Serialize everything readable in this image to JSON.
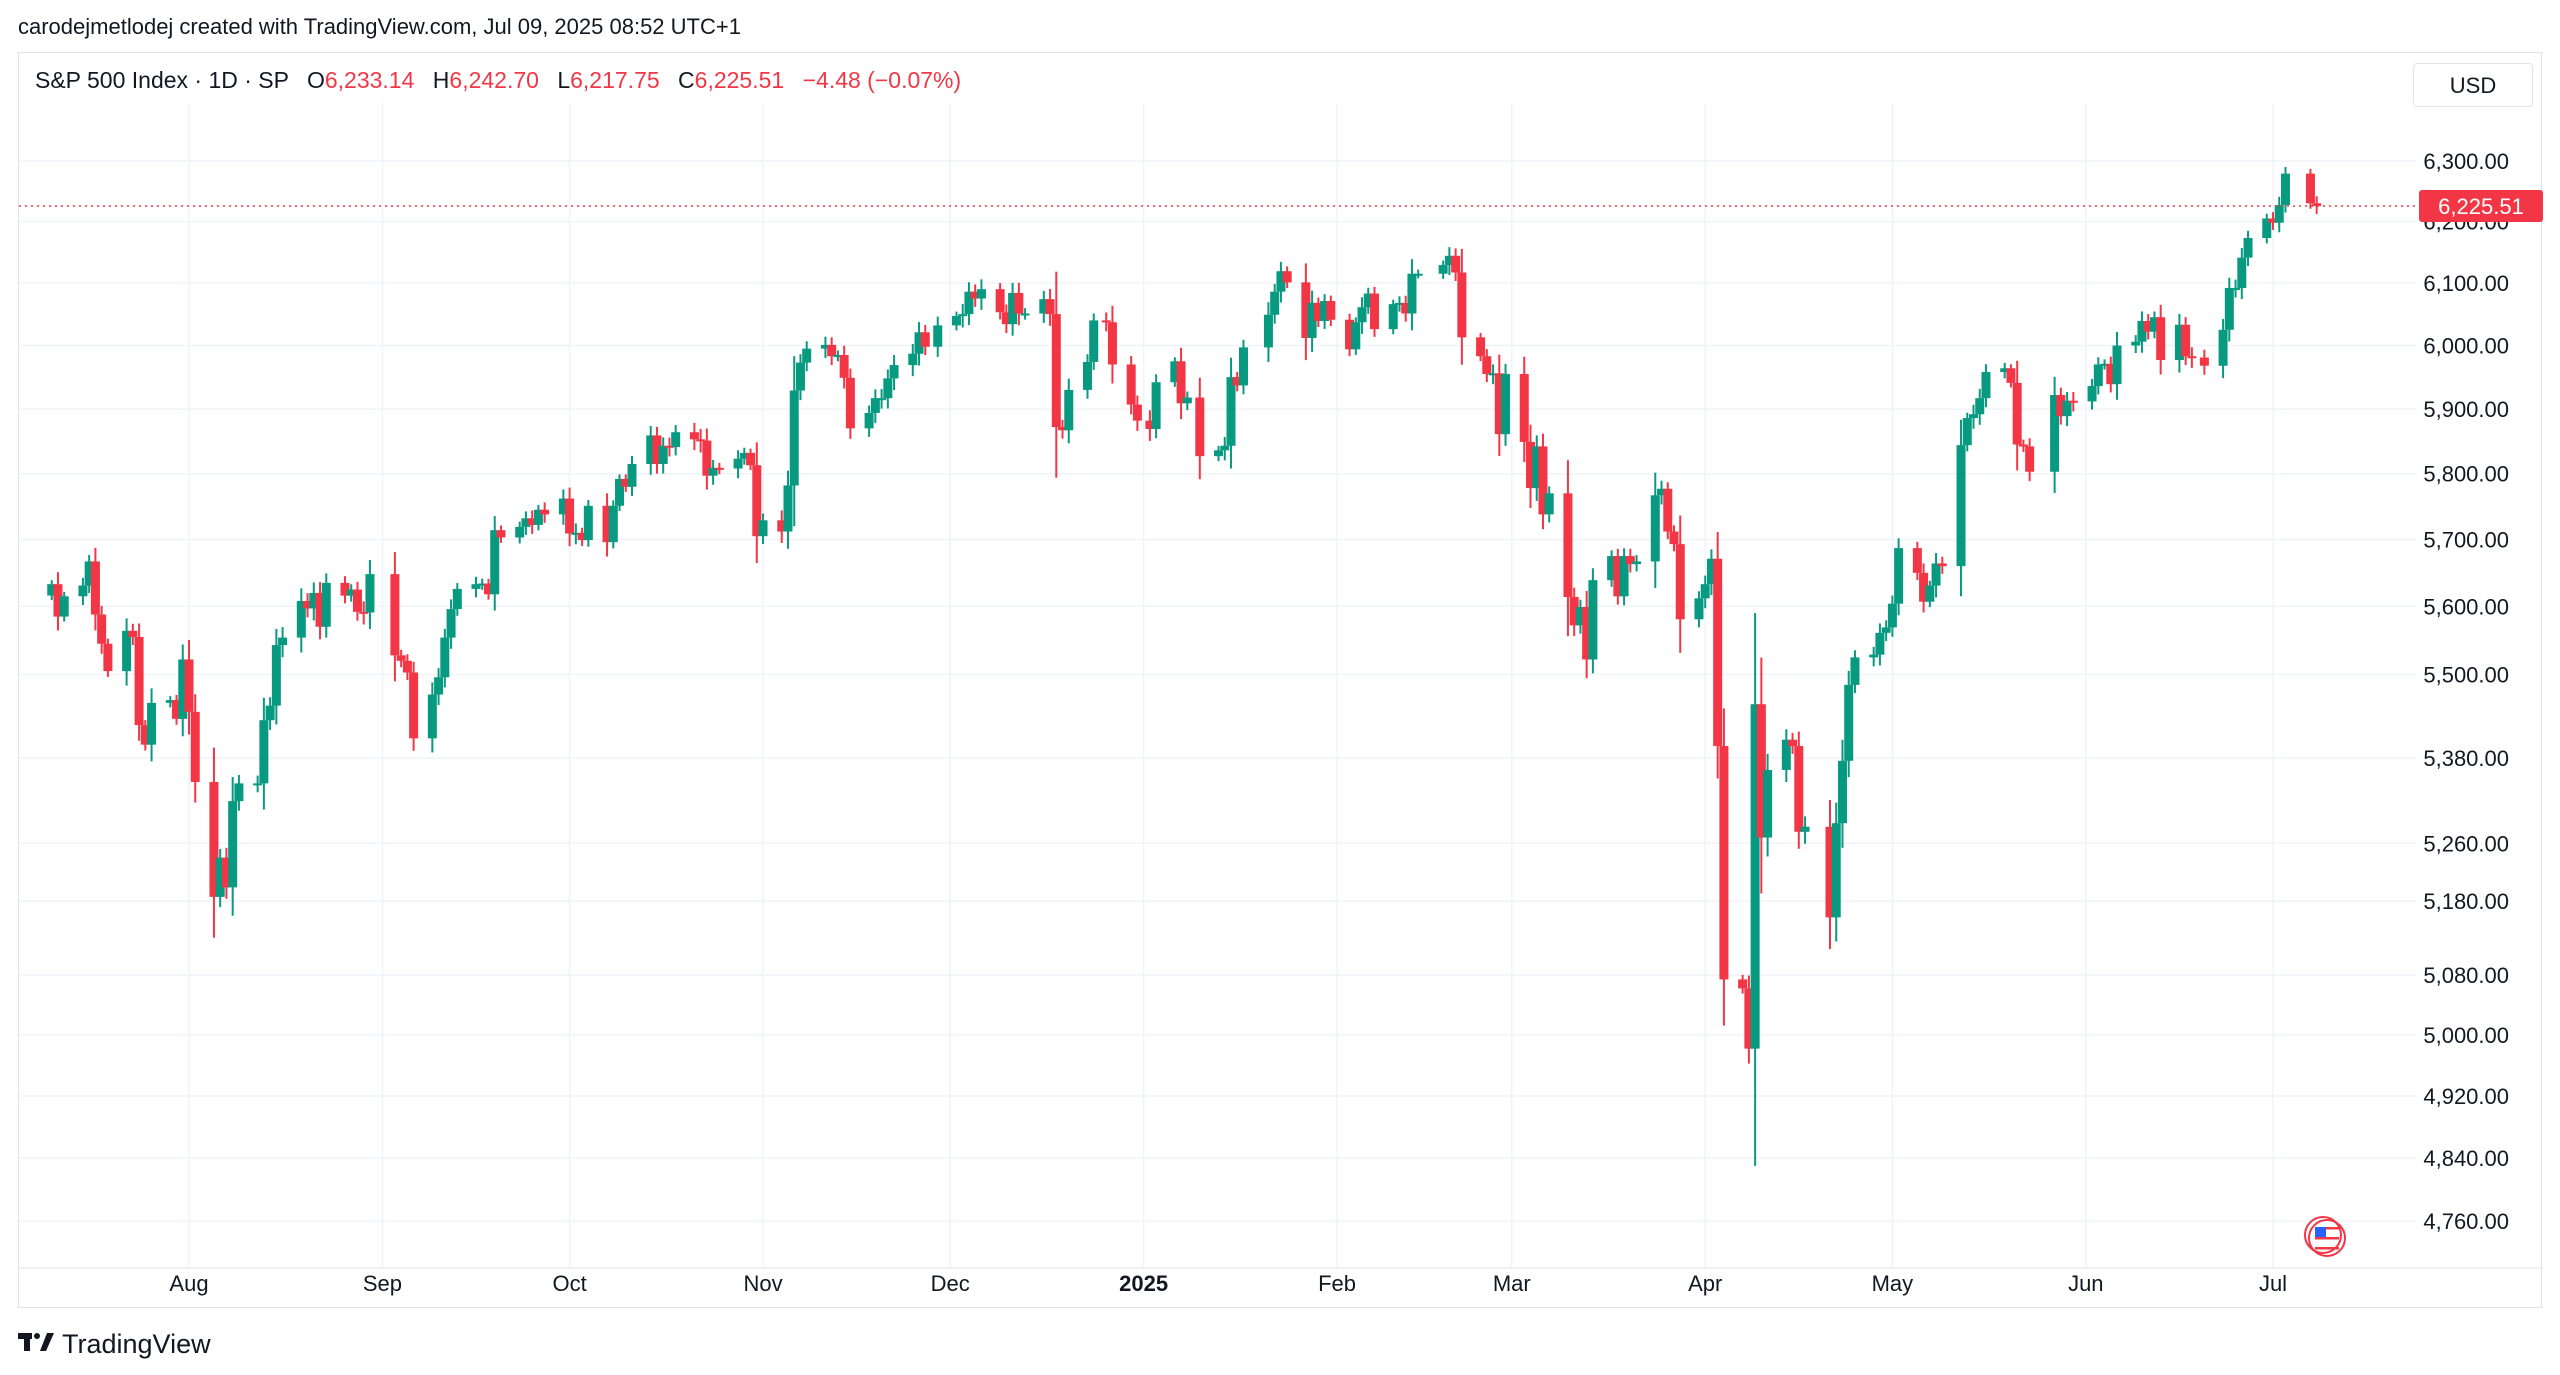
{
  "attribution": "carodejmetlodej created with TradingView.com, Jul 09, 2025 08:52 UTC+1",
  "legend": {
    "symbol": "S&P 500 Index · 1D · SP",
    "open_label": "O",
    "open_value": "6,233.14",
    "high_label": "H",
    "high_value": "6,242.70",
    "low_label": "L",
    "low_value": "6,217.75",
    "close_label": "C",
    "close_value": "6,225.51",
    "change": "−4.48 (−0.07%)"
  },
  "currency_button": "USD",
  "footer_logo": "TradingView",
  "colors": {
    "up": "#089981",
    "down": "#f23645",
    "grid": "#f0f3fa",
    "text": "#131722"
  },
  "chart_data": {
    "type": "candlestick",
    "y_ticks": [
      {
        "value": 6300,
        "label": "6,300.00"
      },
      {
        "value": 6200,
        "label": "6,200.00"
      },
      {
        "value": 6100,
        "label": "6,100.00"
      },
      {
        "value": 6000,
        "label": "6,000.00"
      },
      {
        "value": 5900,
        "label": "5,900.00"
      },
      {
        "value": 5800,
        "label": "5,800.00"
      },
      {
        "value": 5700,
        "label": "5,700.00"
      },
      {
        "value": 5600,
        "label": "5,600.00"
      },
      {
        "value": 5500,
        "label": "5,500.00"
      },
      {
        "value": 5380,
        "label": "5,380.00"
      },
      {
        "value": 5260,
        "label": "5,260.00"
      },
      {
        "value": 5180,
        "label": "5,180.00"
      },
      {
        "value": 5080,
        "label": "5,080.00"
      },
      {
        "value": 5000,
        "label": "5,000.00"
      },
      {
        "value": 4920,
        "label": "4,920.00"
      },
      {
        "value": 4840,
        "label": "4,840.00"
      },
      {
        "value": 4760,
        "label": "4,760.00"
      }
    ],
    "y_scale": "log",
    "x_ticks": [
      {
        "date": "2024-08-01",
        "label": "Aug",
        "bold": false
      },
      {
        "date": "2024-09-01",
        "label": "Sep",
        "bold": false
      },
      {
        "date": "2024-10-01",
        "label": "Oct",
        "bold": false
      },
      {
        "date": "2024-11-01",
        "label": "Nov",
        "bold": false
      },
      {
        "date": "2024-12-01",
        "label": "Dec",
        "bold": false
      },
      {
        "date": "2025-01-01",
        "label": "2025",
        "bold": true
      },
      {
        "date": "2025-02-01",
        "label": "Feb",
        "bold": false
      },
      {
        "date": "2025-03-01",
        "label": "Mar",
        "bold": false
      },
      {
        "date": "2025-04-01",
        "label": "Apr",
        "bold": false
      },
      {
        "date": "2025-05-01",
        "label": "May",
        "bold": false
      },
      {
        "date": "2025-06-01",
        "label": "Jun",
        "bold": false
      },
      {
        "date": "2025-07-01",
        "label": "Jul",
        "bold": false
      }
    ],
    "last_price": 6225.51,
    "last_price_label": "6,225.51",
    "grid": true,
    "closes": [
      [
        "2024-07-10",
        5633
      ],
      [
        "2024-07-11",
        5585
      ],
      [
        "2024-07-12",
        5615
      ],
      [
        "2024-07-15",
        5631
      ],
      [
        "2024-07-16",
        5667
      ],
      [
        "2024-07-17",
        5588
      ],
      [
        "2024-07-18",
        5545
      ],
      [
        "2024-07-19",
        5505
      ],
      [
        "2024-07-22",
        5564
      ],
      [
        "2024-07-23",
        5555
      ],
      [
        "2024-07-24",
        5427
      ],
      [
        "2024-07-25",
        5399
      ],
      [
        "2024-07-26",
        5459
      ],
      [
        "2024-07-29",
        5463
      ],
      [
        "2024-07-30",
        5436
      ],
      [
        "2024-07-31",
        5522
      ],
      [
        "2024-08-01",
        5446
      ],
      [
        "2024-08-02",
        5346
      ],
      [
        "2024-08-05",
        5186
      ],
      [
        "2024-08-06",
        5240
      ],
      [
        "2024-08-07",
        5199
      ],
      [
        "2024-08-08",
        5319
      ],
      [
        "2024-08-09",
        5344
      ],
      [
        "2024-08-12",
        5344
      ],
      [
        "2024-08-13",
        5434
      ],
      [
        "2024-08-14",
        5455
      ],
      [
        "2024-08-15",
        5543
      ],
      [
        "2024-08-16",
        5554
      ],
      [
        "2024-08-19",
        5608
      ],
      [
        "2024-08-20",
        5597
      ],
      [
        "2024-08-21",
        5620
      ],
      [
        "2024-08-22",
        5570
      ],
      [
        "2024-08-23",
        5635
      ],
      [
        "2024-08-26",
        5616
      ],
      [
        "2024-08-27",
        5625
      ],
      [
        "2024-08-28",
        5592
      ],
      [
        "2024-08-29",
        5591
      ],
      [
        "2024-08-30",
        5648
      ],
      [
        "2024-09-03",
        5528
      ],
      [
        "2024-09-04",
        5520
      ],
      [
        "2024-09-05",
        5503
      ],
      [
        "2024-09-06",
        5408
      ],
      [
        "2024-09-09",
        5471
      ],
      [
        "2024-09-10",
        5496
      ],
      [
        "2024-09-11",
        5554
      ],
      [
        "2024-09-12",
        5596
      ],
      [
        "2024-09-13",
        5626
      ],
      [
        "2024-09-16",
        5633
      ],
      [
        "2024-09-17",
        5634
      ],
      [
        "2024-09-18",
        5618
      ],
      [
        "2024-09-19",
        5714
      ],
      [
        "2024-09-20",
        5703
      ],
      [
        "2024-09-23",
        5719
      ],
      [
        "2024-09-24",
        5732
      ],
      [
        "2024-09-25",
        5722
      ],
      [
        "2024-09-26",
        5745
      ],
      [
        "2024-09-27",
        5738
      ],
      [
        "2024-09-30",
        5762
      ],
      [
        "2024-10-01",
        5709
      ],
      [
        "2024-10-02",
        5710
      ],
      [
        "2024-10-03",
        5699
      ],
      [
        "2024-10-04",
        5751
      ],
      [
        "2024-10-07",
        5696
      ],
      [
        "2024-10-08",
        5751
      ],
      [
        "2024-10-09",
        5792
      ],
      [
        "2024-10-10",
        5780
      ],
      [
        "2024-10-11",
        5815
      ],
      [
        "2024-10-14",
        5859
      ],
      [
        "2024-10-15",
        5815
      ],
      [
        "2024-10-16",
        5843
      ],
      [
        "2024-10-17",
        5841
      ],
      [
        "2024-10-18",
        5864
      ],
      [
        "2024-10-21",
        5853
      ],
      [
        "2024-10-22",
        5851
      ],
      [
        "2024-10-23",
        5797
      ],
      [
        "2024-10-24",
        5809
      ],
      [
        "2024-10-25",
        5808
      ],
      [
        "2024-10-28",
        5823
      ],
      [
        "2024-10-29",
        5832
      ],
      [
        "2024-10-30",
        5813
      ],
      [
        "2024-10-31",
        5705
      ],
      [
        "2024-11-01",
        5729
      ],
      [
        "2024-11-04",
        5712
      ],
      [
        "2024-11-05",
        5782
      ],
      [
        "2024-11-06",
        5929
      ],
      [
        "2024-11-07",
        5973
      ],
      [
        "2024-11-08",
        5995
      ],
      [
        "2024-11-11",
        6001
      ],
      [
        "2024-11-12",
        5983
      ],
      [
        "2024-11-13",
        5985
      ],
      [
        "2024-11-14",
        5949
      ],
      [
        "2024-11-15",
        5870
      ],
      [
        "2024-11-18",
        5894
      ],
      [
        "2024-11-19",
        5917
      ],
      [
        "2024-11-20",
        5917
      ],
      [
        "2024-11-21",
        5948
      ],
      [
        "2024-11-22",
        5969
      ],
      [
        "2024-11-25",
        5987
      ],
      [
        "2024-11-26",
        6021
      ],
      [
        "2024-11-27",
        5998
      ],
      [
        "2024-11-29",
        6032
      ],
      [
        "2024-12-02",
        6047
      ],
      [
        "2024-12-03",
        6050
      ],
      [
        "2024-12-04",
        6086
      ],
      [
        "2024-12-05",
        6075
      ],
      [
        "2024-12-06",
        6090
      ],
      [
        "2024-12-09",
        6053
      ],
      [
        "2024-12-10",
        6034
      ],
      [
        "2024-12-11",
        6084
      ],
      [
        "2024-12-12",
        6051
      ],
      [
        "2024-12-13",
        6051
      ],
      [
        "2024-12-16",
        6074
      ],
      [
        "2024-12-17",
        6050
      ],
      [
        "2024-12-18",
        5872
      ],
      [
        "2024-12-19",
        5867
      ],
      [
        "2024-12-20",
        5930
      ],
      [
        "2024-12-23",
        5974
      ],
      [
        "2024-12-24",
        6040
      ],
      [
        "2024-12-26",
        6037
      ],
      [
        "2024-12-27",
        5970
      ],
      [
        "2024-12-30",
        5907
      ],
      [
        "2024-12-31",
        5882
      ],
      [
        "2025-01-02",
        5869
      ],
      [
        "2025-01-03",
        5942
      ],
      [
        "2025-01-06",
        5975
      ],
      [
        "2025-01-07",
        5909
      ],
      [
        "2025-01-08",
        5918
      ],
      [
        "2025-01-10",
        5827
      ],
      [
        "2025-01-13",
        5836
      ],
      [
        "2025-01-14",
        5843
      ],
      [
        "2025-01-15",
        5950
      ],
      [
        "2025-01-16",
        5937
      ],
      [
        "2025-01-17",
        5997
      ],
      [
        "2025-01-21",
        6049
      ],
      [
        "2025-01-22",
        6086
      ],
      [
        "2025-01-23",
        6119
      ],
      [
        "2025-01-24",
        6101
      ],
      [
        "2025-01-27",
        6012
      ],
      [
        "2025-01-28",
        6068
      ],
      [
        "2025-01-29",
        6039
      ],
      [
        "2025-01-30",
        6071
      ],
      [
        "2025-01-31",
        6041
      ],
      [
        "2025-02-03",
        5994
      ],
      [
        "2025-02-04",
        6037
      ],
      [
        "2025-02-05",
        6061
      ],
      [
        "2025-02-06",
        6083
      ],
      [
        "2025-02-07",
        6026
      ],
      [
        "2025-02-10",
        6066
      ],
      [
        "2025-02-11",
        6068
      ],
      [
        "2025-02-12",
        6051
      ],
      [
        "2025-02-13",
        6115
      ],
      [
        "2025-02-14",
        6115
      ],
      [
        "2025-02-18",
        6129
      ],
      [
        "2025-02-19",
        6144
      ],
      [
        "2025-02-20",
        6117
      ],
      [
        "2025-02-21",
        6013
      ],
      [
        "2025-02-24",
        5983
      ],
      [
        "2025-02-25",
        5955
      ],
      [
        "2025-02-26",
        5956
      ],
      [
        "2025-02-27",
        5861
      ],
      [
        "2025-02-28",
        5955
      ],
      [
        "2025-03-03",
        5849
      ],
      [
        "2025-03-04",
        5778
      ],
      [
        "2025-03-05",
        5842
      ],
      [
        "2025-03-06",
        5738
      ],
      [
        "2025-03-07",
        5770
      ],
      [
        "2025-03-10",
        5614
      ],
      [
        "2025-03-11",
        5572
      ],
      [
        "2025-03-12",
        5599
      ],
      [
        "2025-03-13",
        5522
      ],
      [
        "2025-03-14",
        5639
      ],
      [
        "2025-03-17",
        5675
      ],
      [
        "2025-03-18",
        5615
      ],
      [
        "2025-03-19",
        5675
      ],
      [
        "2025-03-20",
        5663
      ],
      [
        "2025-03-21",
        5667
      ],
      [
        "2025-03-24",
        5767
      ],
      [
        "2025-03-25",
        5777
      ],
      [
        "2025-03-26",
        5712
      ],
      [
        "2025-03-27",
        5693
      ],
      [
        "2025-03-28",
        5581
      ],
      [
        "2025-03-31",
        5612
      ],
      [
        "2025-04-01",
        5633
      ],
      [
        "2025-04-02",
        5671
      ],
      [
        "2025-04-03",
        5397
      ],
      [
        "2025-04-04",
        5074
      ],
      [
        "2025-04-07",
        5062
      ],
      [
        "2025-04-08",
        4982
      ],
      [
        "2025-04-09",
        5457
      ],
      [
        "2025-04-10",
        5268
      ],
      [
        "2025-04-11",
        5363
      ],
      [
        "2025-04-14",
        5406
      ],
      [
        "2025-04-15",
        5397
      ],
      [
        "2025-04-16",
        5276
      ],
      [
        "2025-04-17",
        5283
      ],
      [
        "2025-04-21",
        5158
      ],
      [
        "2025-04-22",
        5288
      ],
      [
        "2025-04-23",
        5376
      ],
      [
        "2025-04-24",
        5485
      ],
      [
        "2025-04-25",
        5525
      ],
      [
        "2025-04-28",
        5529
      ],
      [
        "2025-04-29",
        5561
      ],
      [
        "2025-04-30",
        5569
      ],
      [
        "2025-05-01",
        5604
      ],
      [
        "2025-05-02",
        5687
      ],
      [
        "2025-05-05",
        5650
      ],
      [
        "2025-05-06",
        5607
      ],
      [
        "2025-05-07",
        5631
      ],
      [
        "2025-05-08",
        5664
      ],
      [
        "2025-05-09",
        5660
      ],
      [
        "2025-05-12",
        5844
      ],
      [
        "2025-05-13",
        5886
      ],
      [
        "2025-05-14",
        5892
      ],
      [
        "2025-05-15",
        5917
      ],
      [
        "2025-05-16",
        5958
      ],
      [
        "2025-05-19",
        5964
      ],
      [
        "2025-05-20",
        5941
      ],
      [
        "2025-05-21",
        5845
      ],
      [
        "2025-05-22",
        5842
      ],
      [
        "2025-05-23",
        5803
      ],
      [
        "2025-05-27",
        5922
      ],
      [
        "2025-05-28",
        5889
      ],
      [
        "2025-05-29",
        5913
      ],
      [
        "2025-05-30",
        5912
      ],
      [
        "2025-06-02",
        5936
      ],
      [
        "2025-06-03",
        5970
      ],
      [
        "2025-06-04",
        5971
      ],
      [
        "2025-06-05",
        5939
      ],
      [
        "2025-06-06",
        6000
      ],
      [
        "2025-06-09",
        6006
      ],
      [
        "2025-06-10",
        6039
      ],
      [
        "2025-06-11",
        6022
      ],
      [
        "2025-06-12",
        6045
      ],
      [
        "2025-06-13",
        5977
      ],
      [
        "2025-06-16",
        6033
      ],
      [
        "2025-06-17",
        5983
      ],
      [
        "2025-06-18",
        5981
      ],
      [
        "2025-06-20",
        5968
      ],
      [
        "2025-06-23",
        6025
      ],
      [
        "2025-06-24",
        6092
      ],
      [
        "2025-06-25",
        6092
      ],
      [
        "2025-06-26",
        6141
      ],
      [
        "2025-06-27",
        6173
      ],
      [
        "2025-06-30",
        6205
      ],
      [
        "2025-07-01",
        6198
      ],
      [
        "2025-07-02",
        6227
      ],
      [
        "2025-07-03",
        6279
      ],
      [
        "2025-07-07",
        6230
      ],
      [
        "2025-07-08",
        6225.51
      ]
    ]
  }
}
